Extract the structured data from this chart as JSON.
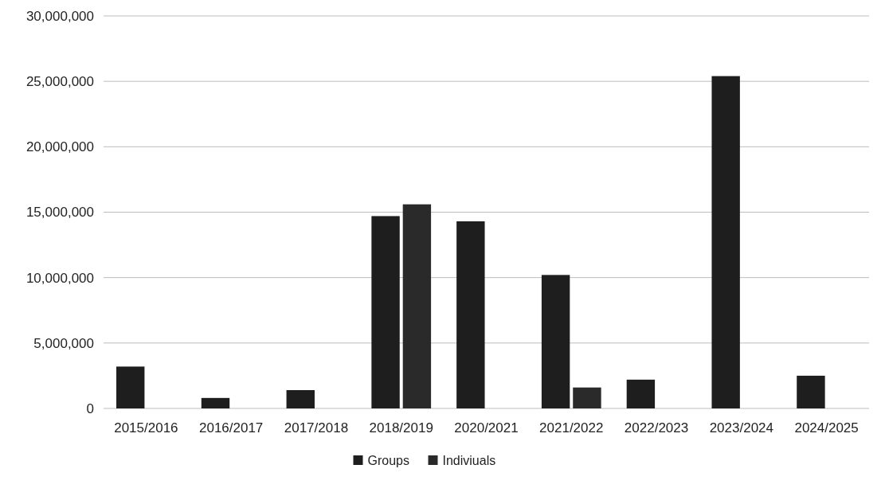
{
  "chart_data": {
    "type": "bar",
    "categories": [
      "2015/2016",
      "2016/2017",
      "2017/2018",
      "2018/2019",
      "2020/2021",
      "2021/2022",
      "2022/2023",
      "2023/2024",
      "2024/2025"
    ],
    "series": [
      {
        "name": "Groups",
        "color": "#1e1e1e",
        "values": [
          3200000,
          800000,
          1400000,
          14700000,
          14300000,
          10200000,
          2200000,
          25400000,
          2500000
        ]
      },
      {
        "name": "Indiviuals",
        "color": "#2a2a2a",
        "values": [
          null,
          null,
          null,
          15600000,
          null,
          1600000,
          null,
          null,
          null
        ]
      }
    ],
    "ylim": [
      0,
      30000000
    ],
    "yticks": [
      {
        "value": 0,
        "label": "0"
      },
      {
        "value": 5000000,
        "label": "5,000,000"
      },
      {
        "value": 10000000,
        "label": "10,000,000"
      },
      {
        "value": 15000000,
        "label": "15,000,000"
      },
      {
        "value": 20000000,
        "label": "20,000,000"
      },
      {
        "value": 25000000,
        "label": "25,000,000"
      },
      {
        "value": 30000000,
        "label": "30,000,000"
      }
    ],
    "grid": "y",
    "legend": "bottom"
  }
}
